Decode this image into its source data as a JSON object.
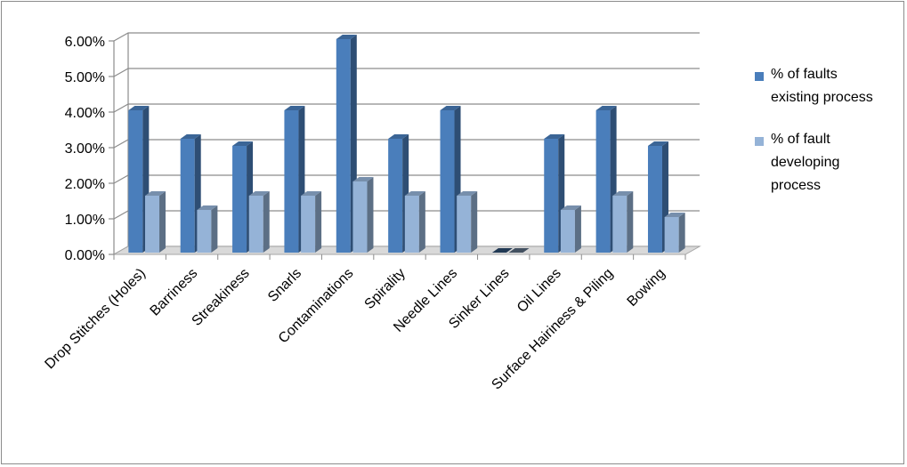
{
  "chart_data": {
    "type": "bar",
    "title": "",
    "xlabel": "",
    "ylabel": "",
    "ylim": [
      0,
      6
    ],
    "yticks": [
      "0.00%",
      "1.00%",
      "2.00%",
      "3.00%",
      "4.00%",
      "5.00%",
      "6.00%"
    ],
    "grid": true,
    "legend_position": "right",
    "categories": [
      "Drop Stitches (Holes)",
      "Barriness",
      "Streakiness",
      "Snarls",
      "Contaminations",
      "Spirality",
      "Needle Lines",
      "Sinker Lines",
      "Oil Lines",
      "Surface Hairiness & Piling",
      "Bowing"
    ],
    "series": [
      {
        "name": "% of faults existing process",
        "legend_lines": [
          "% of faults",
          "existing process"
        ],
        "color": "#4a7ebb",
        "values": [
          4.0,
          3.2,
          3.0,
          4.0,
          6.0,
          3.2,
          4.0,
          0.0,
          3.2,
          4.0,
          3.0
        ]
      },
      {
        "name": "% of fault developing process",
        "legend_lines": [
          "% of fault",
          "developing",
          "process"
        ],
        "color": "#95b3d7",
        "values": [
          1.6,
          1.2,
          1.6,
          1.6,
          2.0,
          1.6,
          1.6,
          0.0,
          1.2,
          1.6,
          1.0
        ]
      }
    ]
  }
}
